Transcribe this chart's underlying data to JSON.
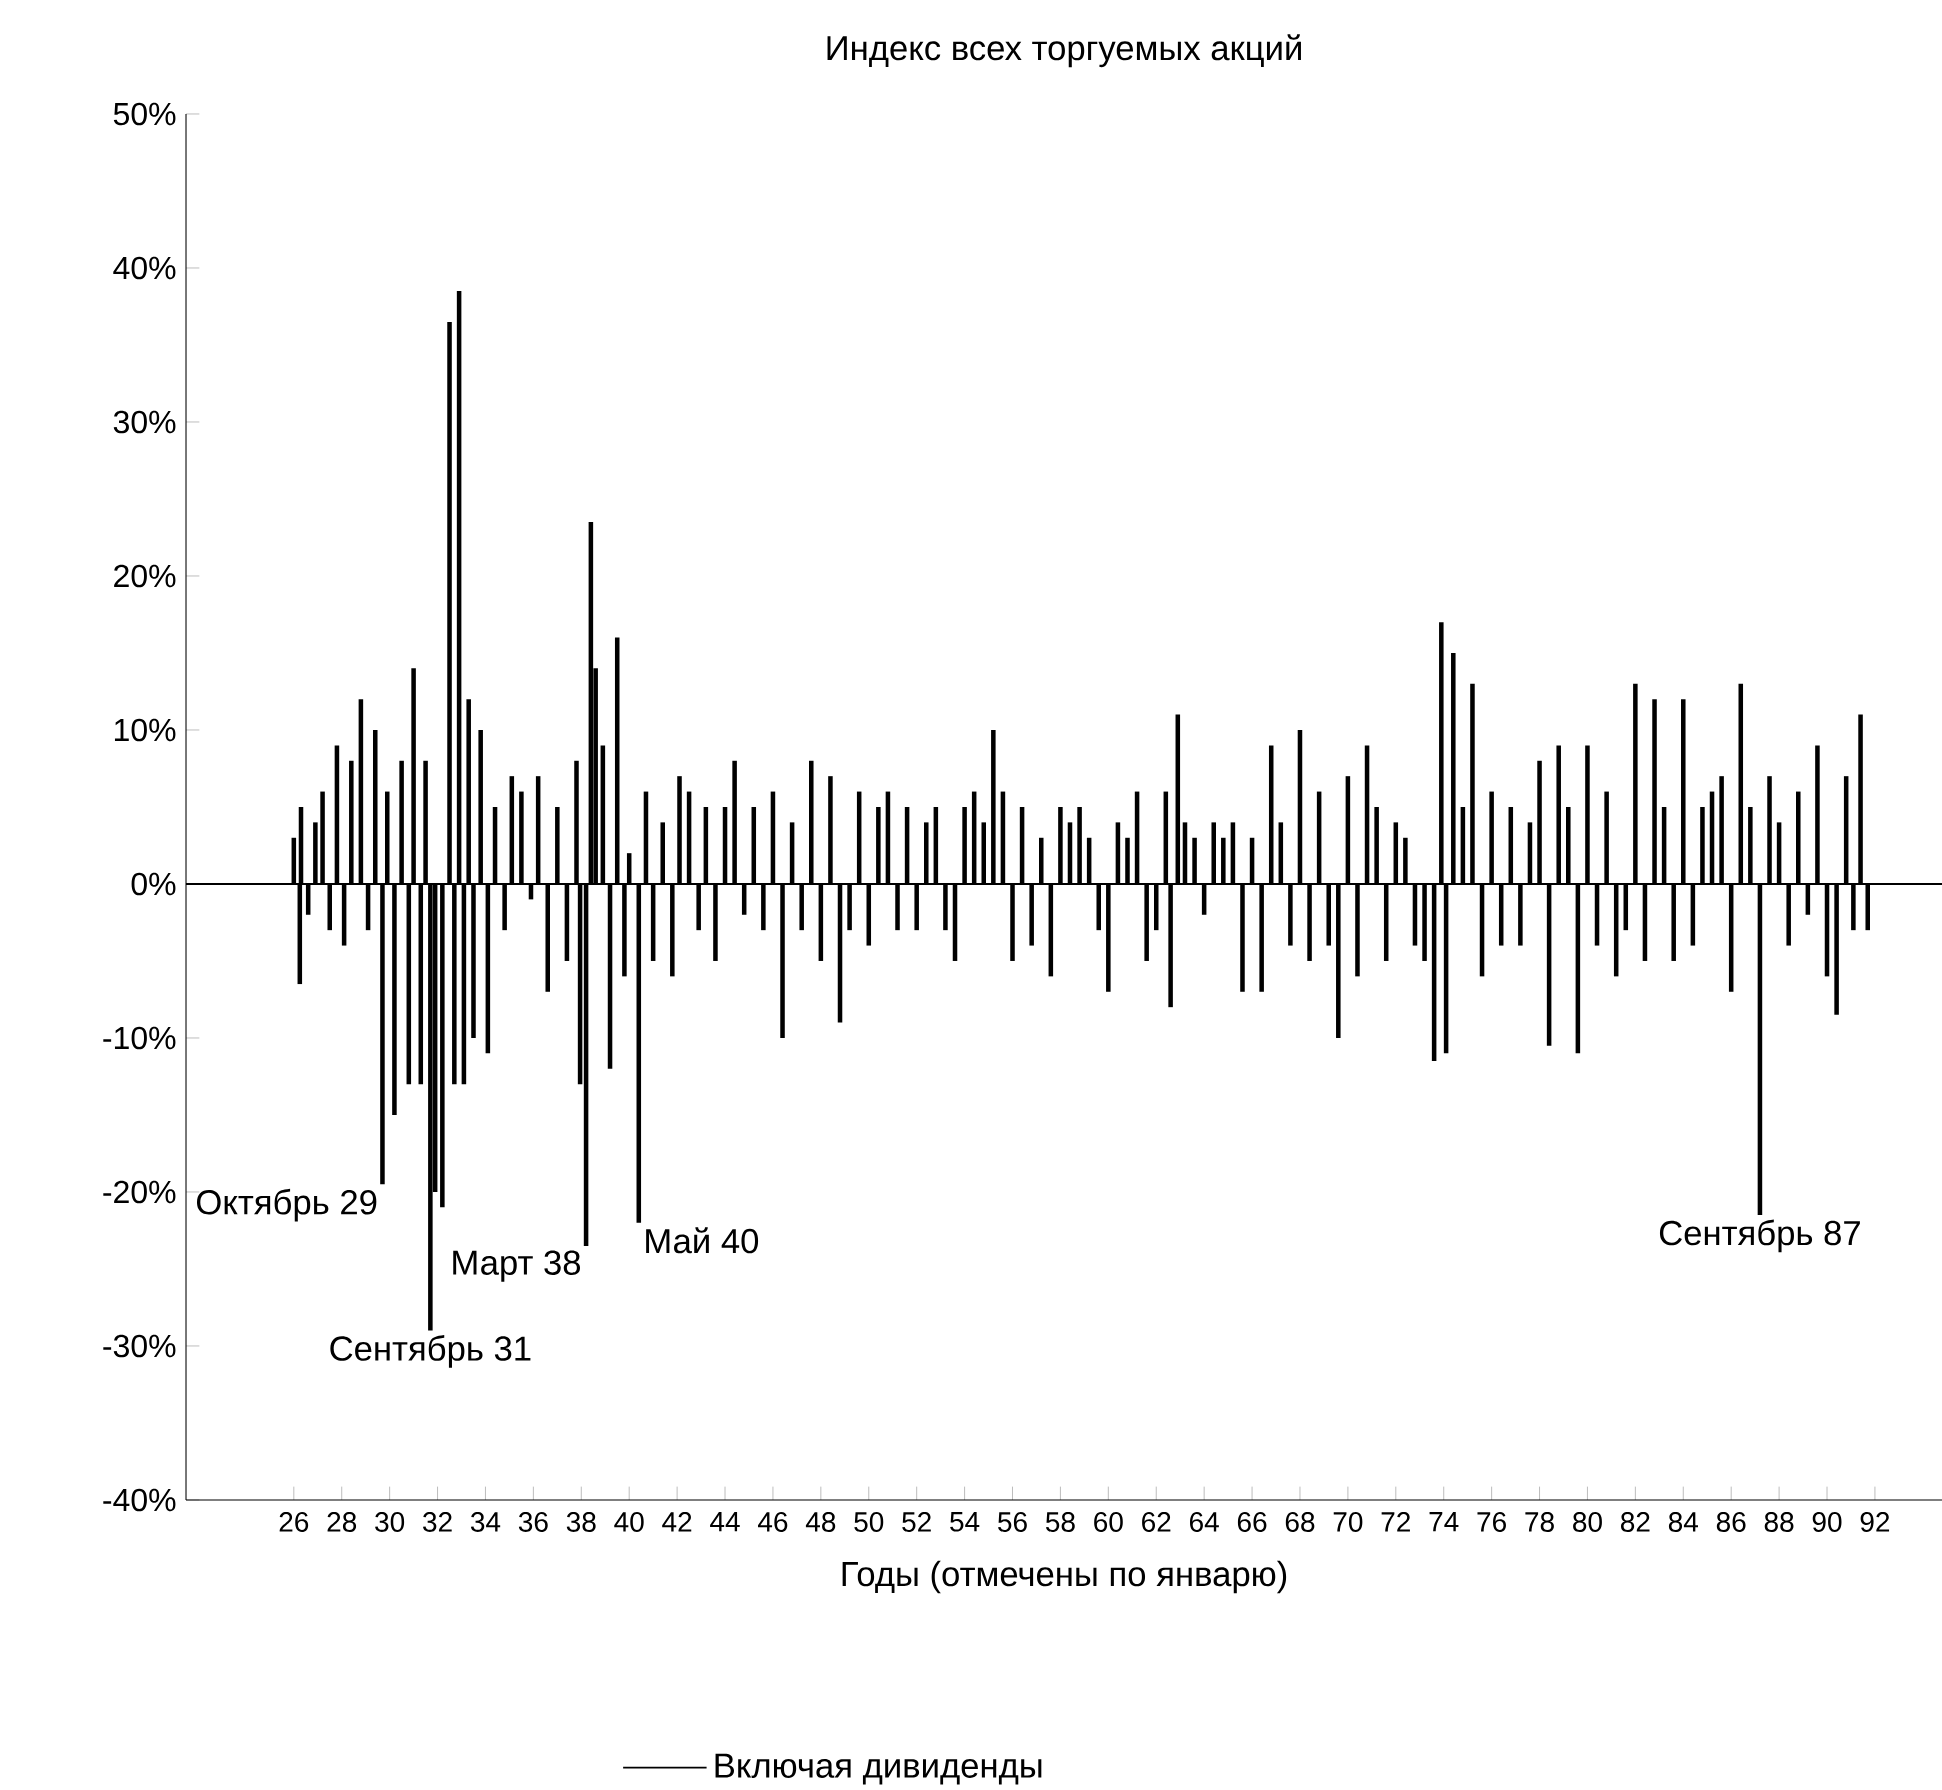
{
  "chart_data": {
    "type": "bar",
    "title": "Индекс всех торгуемых акций",
    "xlabel": "Годы (отмечены по январю)",
    "legend": "bottom",
    "xlim": [
      21.5,
      94.8
    ],
    "xticks": [
      26,
      28,
      30,
      32,
      34,
      36,
      38,
      40,
      42,
      44,
      46,
      48,
      50,
      52,
      54,
      56,
      58,
      60,
      62,
      64,
      66,
      68,
      70,
      72,
      74,
      76,
      78,
      80,
      82,
      84,
      86,
      88,
      90,
      92
    ],
    "ylim": [
      -40,
      50
    ],
    "yticks": [
      {
        "value": -40,
        "label": "-40%"
      },
      {
        "value": -30,
        "label": "-30%"
      },
      {
        "value": -20,
        "label": "-20%"
      },
      {
        "value": -10,
        "label": "-10%"
      },
      {
        "value": 0,
        "label": "0%"
      },
      {
        "value": 10,
        "label": "10%"
      },
      {
        "value": 20,
        "label": "20%"
      },
      {
        "value": 30,
        "label": "30%"
      },
      {
        "value": 40,
        "label": "40%"
      },
      {
        "value": 50,
        "label": "50%"
      }
    ],
    "ref_lines": [
      {
        "axis": "y",
        "value": 0,
        "color": "#000000"
      }
    ],
    "annotations": [
      {
        "text": "Октябрь 29",
        "x": 29.7,
        "y": -19.5
      },
      {
        "text": "Сентябрь 31",
        "x": 31.7,
        "y": -29
      },
      {
        "text": "Март 38",
        "x": 38.2,
        "y": -23.5
      },
      {
        "text": "Май 40",
        "x": 40.4,
        "y": -22
      },
      {
        "text": "Сентябрь 87",
        "x": 87.2,
        "y": -21.5
      }
    ],
    "series": [
      {
        "name": "Включая дивиденды",
        "color": "#000000",
        "x": [
          26.0,
          26.25,
          26.3,
          26.6,
          26.9,
          27.2,
          27.5,
          27.8,
          28.1,
          28.4,
          28.8,
          29.1,
          29.4,
          29.7,
          29.9,
          30.2,
          30.5,
          30.8,
          31.0,
          31.3,
          31.5,
          31.7,
          31.9,
          32.2,
          32.5,
          32.7,
          32.9,
          33.1,
          33.3,
          33.5,
          33.8,
          34.1,
          34.4,
          34.8,
          35.1,
          35.5,
          35.9,
          36.2,
          36.6,
          37.0,
          37.4,
          37.8,
          37.95,
          38.2,
          38.4,
          38.6,
          38.9,
          39.2,
          39.5,
          39.8,
          40.0,
          40.4,
          40.7,
          41.0,
          41.4,
          41.8,
          42.1,
          42.5,
          42.9,
          43.2,
          43.6,
          44.0,
          44.4,
          44.8,
          45.2,
          45.6,
          46.0,
          46.4,
          46.8,
          47.2,
          47.6,
          48.0,
          48.4,
          48.8,
          49.2,
          49.6,
          50.0,
          50.4,
          50.8,
          51.2,
          51.6,
          52.0,
          52.4,
          52.8,
          53.2,
          53.6,
          54.0,
          54.4,
          54.8,
          55.2,
          55.6,
          56.0,
          56.4,
          56.8,
          57.2,
          57.6,
          58.0,
          58.4,
          58.8,
          59.2,
          59.6,
          60.0,
          60.4,
          60.8,
          61.2,
          61.6,
          62.0,
          62.4,
          62.6,
          62.9,
          63.2,
          63.6,
          64.0,
          64.4,
          64.8,
          65.2,
          65.6,
          66.0,
          66.4,
          66.8,
          67.2,
          67.6,
          68.0,
          68.4,
          68.8,
          69.2,
          69.6,
          70.0,
          70.4,
          70.8,
          71.2,
          71.6,
          72.0,
          72.4,
          72.8,
          73.2,
          73.6,
          73.9,
          74.1,
          74.4,
          74.8,
          75.2,
          75.6,
          76.0,
          76.4,
          76.8,
          77.2,
          77.6,
          78.0,
          78.4,
          78.8,
          79.2,
          79.6,
          80.0,
          80.4,
          80.8,
          81.2,
          81.6,
          82.0,
          82.4,
          82.8,
          83.2,
          83.6,
          84.0,
          84.4,
          84.8,
          85.2,
          85.6,
          86.0,
          86.4,
          86.8,
          87.2,
          87.6,
          88.0,
          88.4,
          88.8,
          89.2,
          89.6,
          90.0,
          90.4,
          90.8,
          91.1,
          91.4,
          91.7
        ],
        "values": [
          3,
          -6.5,
          5,
          -2,
          4,
          6,
          -3,
          9,
          -4,
          8,
          12,
          -3,
          10,
          -19.5,
          6,
          -15,
          8,
          -13,
          14,
          -13,
          8,
          -29,
          -20,
          -21,
          36.5,
          -13,
          38.5,
          -13,
          12,
          -10,
          10,
          -11,
          5,
          -3,
          7,
          6,
          -1,
          7,
          -7,
          5,
          -5,
          8,
          -13,
          -23.5,
          23.5,
          14,
          9,
          -12,
          16,
          -6,
          2,
          -22,
          6,
          -5,
          4,
          -6,
          7,
          6,
          -3,
          5,
          -5,
          5,
          8,
          -2,
          5,
          -3,
          6,
          -10,
          4,
          -3,
          8,
          -5,
          7,
          -9,
          -3,
          6,
          -4,
          5,
          6,
          -3,
          5,
          -3,
          4,
          5,
          -3,
          -5,
          5,
          6,
          4,
          10,
          6,
          -5,
          5,
          -4,
          3,
          -6,
          5,
          4,
          5,
          3,
          -3,
          -7,
          4,
          3,
          6,
          -5,
          -3,
          6,
          -8,
          11,
          4,
          3,
          -2,
          4,
          3,
          4,
          -7,
          3,
          -7,
          9,
          4,
          -4,
          10,
          -5,
          6,
          -4,
          -10,
          7,
          -6,
          9,
          5,
          -5,
          4,
          3,
          -4,
          -5,
          -11.5,
          17,
          -11,
          15,
          5,
          13,
          -6,
          6,
          -4,
          5,
          -4,
          4,
          8,
          -10.5,
          9,
          5,
          -11,
          9,
          -4,
          6,
          -6,
          -3,
          13,
          -5,
          12,
          5,
          -5,
          12,
          -4,
          5,
          6,
          7,
          -7,
          13,
          5,
          -21.5,
          7,
          4,
          -4,
          6,
          -2,
          9,
          -6,
          -8.5,
          7,
          -3,
          11,
          -3
        ]
      }
    ]
  }
}
